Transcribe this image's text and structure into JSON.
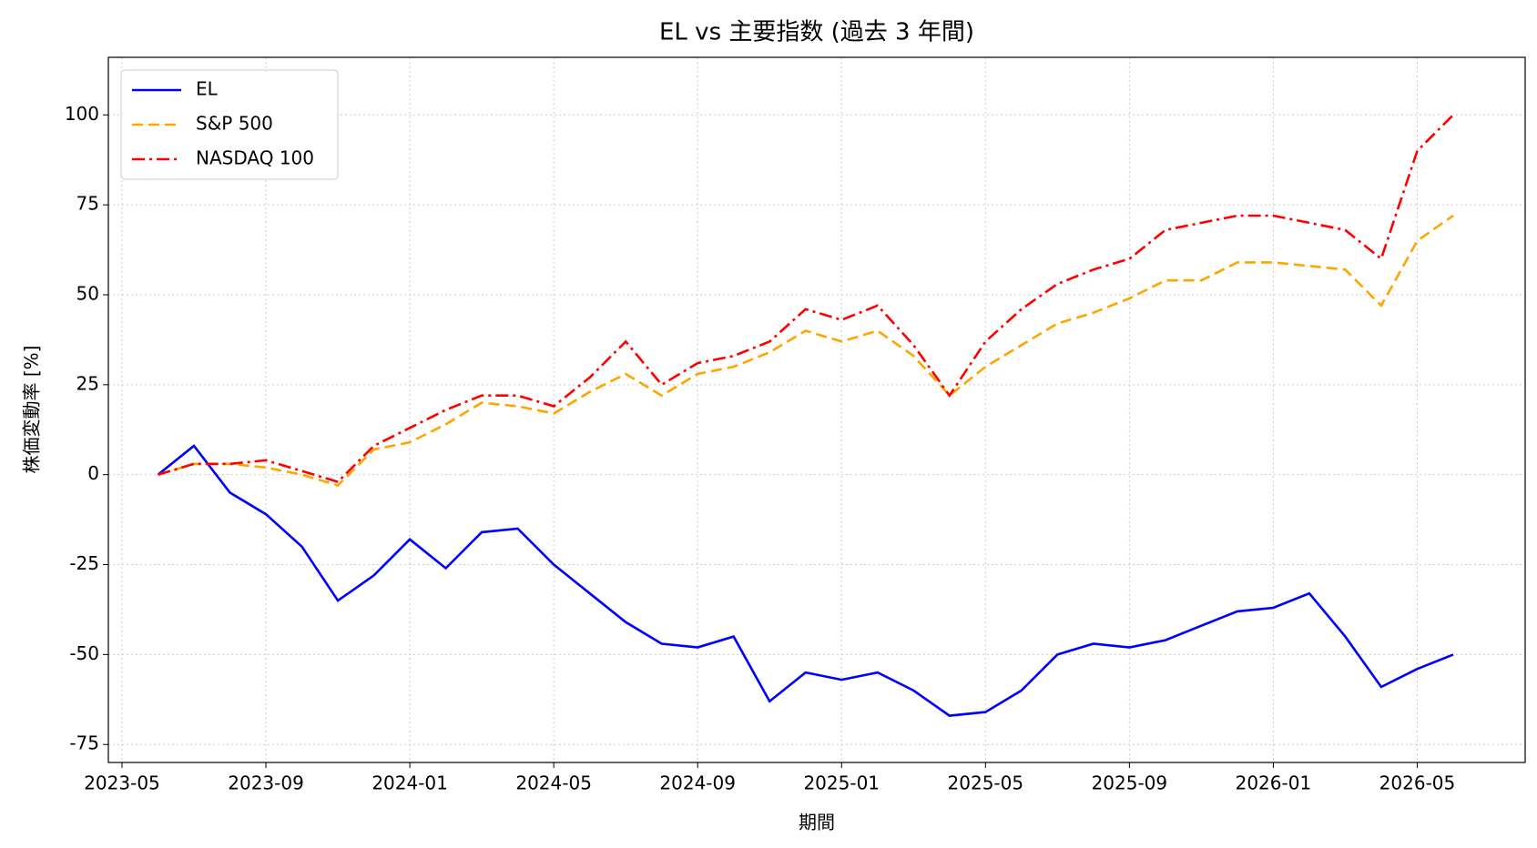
{
  "chart_data": {
    "type": "line",
    "title": "EL vs 主要指数 (過去 3 年間)",
    "x_label": "期間",
    "y_label": "株価変動率 [%]",
    "x": [
      "2023-06",
      "2023-07",
      "2023-08",
      "2023-09",
      "2023-10",
      "2023-11",
      "2023-12",
      "2024-01",
      "2024-02",
      "2024-03",
      "2024-04",
      "2024-05",
      "2024-06",
      "2024-07",
      "2024-08",
      "2024-09",
      "2024-10",
      "2024-11",
      "2024-12",
      "2025-01",
      "2025-02",
      "2025-03",
      "2025-04",
      "2025-05",
      "2025-06",
      "2025-07",
      "2025-08",
      "2025-09",
      "2025-10",
      "2025-11",
      "2025-12",
      "2026-01",
      "2026-02",
      "2026-03",
      "2026-04",
      "2026-05",
      "2026-06"
    ],
    "series": [
      {
        "name": "EL",
        "color": "#0000ff",
        "dash": "solid",
        "values": [
          0,
          8,
          -5,
          -11,
          -20,
          -35,
          -28,
          -18,
          -26,
          -16,
          -15,
          -25,
          -33,
          -41,
          -47,
          -48,
          -45,
          -63,
          -55,
          -57,
          -55,
          -60,
          -67,
          -66,
          -60,
          -50,
          -47,
          -48,
          -46,
          -42,
          -38,
          -37,
          -33,
          -45,
          -59,
          -54,
          -50
        ]
      },
      {
        "name": "S&P 500",
        "color": "#ffa500",
        "dash": "dashed",
        "values": [
          0,
          3,
          3,
          2,
          0,
          -3,
          7,
          9,
          14,
          20,
          19,
          17,
          23,
          28,
          22,
          28,
          30,
          34,
          40,
          37,
          40,
          33,
          22,
          30,
          36,
          42,
          45,
          49,
          54,
          54,
          59,
          59,
          58,
          57,
          47,
          65,
          72
        ]
      },
      {
        "name": "NASDAQ 100",
        "color": "#ff0000",
        "dash": "dashdot",
        "values": [
          0,
          3,
          3,
          4,
          1,
          -2,
          8,
          13,
          18,
          22,
          22,
          19,
          27,
          37,
          25,
          31,
          33,
          37,
          46,
          43,
          47,
          36,
          22,
          37,
          46,
          53,
          57,
          60,
          68,
          70,
          72,
          72,
          70,
          68,
          60,
          90,
          100
        ]
      }
    ],
    "xlim": [
      "2023-05",
      "2026-08"
    ],
    "xticks": [
      "2023-05",
      "2023-09",
      "2024-01",
      "2024-05",
      "2024-09",
      "2025-01",
      "2025-05",
      "2025-09",
      "2026-01",
      "2026-05"
    ],
    "ylim": [
      -80,
      116
    ],
    "yticks": [
      -75,
      -50,
      -25,
      0,
      25,
      50,
      75,
      100
    ],
    "grid": true,
    "legend": "upper left"
  }
}
